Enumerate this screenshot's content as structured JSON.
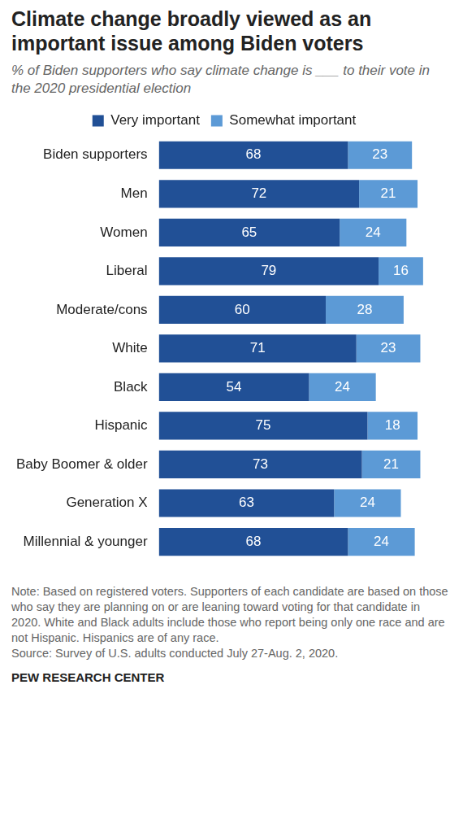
{
  "chart_data": {
    "type": "bar",
    "orientation": "horizontal",
    "stacked": true,
    "title": "Climate change broadly viewed as an important issue among Biden voters",
    "subtitle": "% of Biden supporters who say climate change is ___ to their vote in the 2020 presidential election",
    "categories": [
      "Biden supporters",
      "Men",
      "Women",
      "Liberal",
      "Moderate/cons",
      "White",
      "Black",
      "Hispanic",
      "Baby Boomer & older",
      "Generation X",
      "Millennial & younger"
    ],
    "series": [
      {
        "name": "Very important",
        "color": "#215096",
        "values": [
          68,
          72,
          65,
          79,
          60,
          71,
          54,
          75,
          73,
          63,
          68
        ]
      },
      {
        "name": "Somewhat important",
        "color": "#5c9ad6",
        "values": [
          23,
          21,
          24,
          16,
          28,
          23,
          24,
          18,
          21,
          24,
          24
        ]
      }
    ],
    "xlim": [
      0,
      100
    ],
    "grid": false,
    "legend": "top",
    "data_labels": true,
    "tick_labels": "y",
    "annotations": [
      "Note: Based on registered voters. Supporters of each candidate are based on those who say they are planning on or are leaning toward voting for that candidate in 2020. White and Black adults include those who report being only one race and are not Hispanic. Hispanics are of any race.",
      "Source: Survey of U.S. adults conducted July 27-Aug. 2, 2020.",
      "PEW RESEARCH CENTER"
    ]
  }
}
